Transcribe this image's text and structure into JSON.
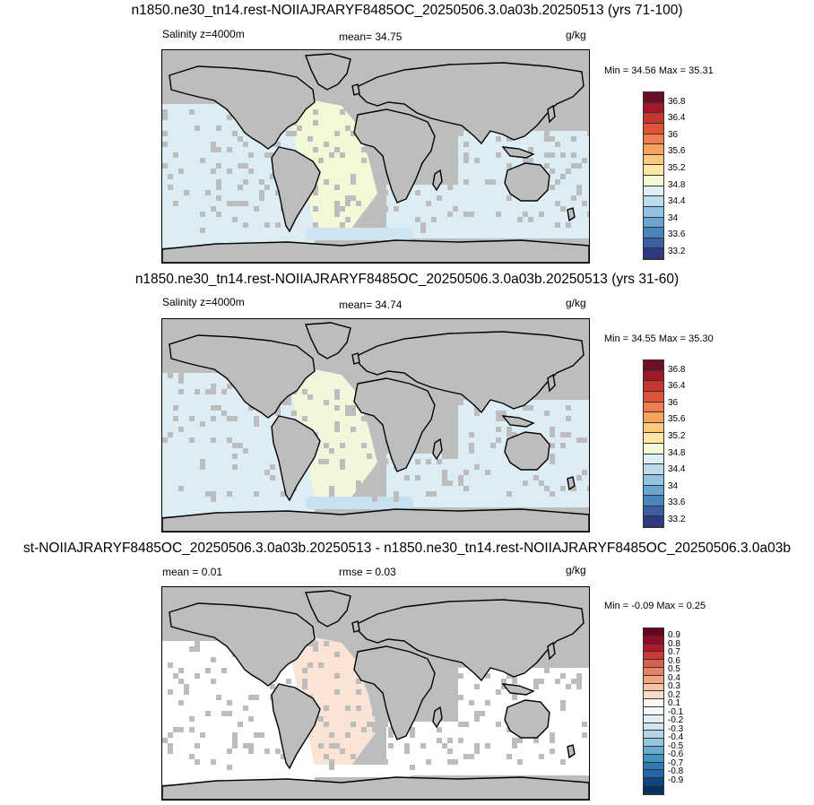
{
  "panels": [
    {
      "title": "n1850.ne30_tn14.rest-NOIIAJRARYF8485OC_20250506.3.0a03b.20250513 (yrs 71-100)",
      "left_label": "Salinity z=4000m",
      "center_label": "mean=  34.75",
      "units": "g/kg",
      "minmax": "Min =  34.56 Max =  35.31",
      "colorbar_labels": [
        "36.8",
        "36.4",
        "36",
        "35.6",
        "35.2",
        "34.8",
        "34.4",
        "34",
        "33.6",
        "33.2"
      ],
      "ocean_color": "#dcedf6",
      "atlantic_color": "#f3f8d6",
      "southern_color": "#cfe6f2"
    },
    {
      "title": "n1850.ne30_tn14.rest-NOIIAJRARYF8485OC_20250506.3.0a03b.20250513 (yrs 31-60)",
      "left_label": "Salinity z=4000m",
      "center_label": "mean=  34.74",
      "units": "g/kg",
      "minmax": "Min =  34.55 Max =  35.30",
      "colorbar_labels": [
        "36.8",
        "36.4",
        "36",
        "35.6",
        "35.2",
        "34.8",
        "34.4",
        "34",
        "33.6",
        "33.2"
      ],
      "ocean_color": "#dcedf6",
      "atlantic_color": "#f0f7da",
      "southern_color": "#c6e1f0"
    },
    {
      "title": "st-NOIIAJRARYF8485OC_20250506.3.0a03b.20250513 - n1850.ne30_tn14.rest-NOIIAJRARYF8485OC_20250506.3.0a03b",
      "left_label": "mean =   0.01",
      "center_label": "rmse =   0.03",
      "units": "g/kg",
      "minmax": "Min =  -0.09 Max =   0.25",
      "colorbar_labels": [
        "0.9",
        "0.8",
        "0.7",
        "0.6",
        "0.5",
        "0.4",
        "0.3",
        "0.2",
        "0.1",
        "-0.1",
        "-0.2",
        "-0.3",
        "-0.4",
        "-0.5",
        "-0.6",
        "-0.7",
        "-0.8",
        "-0.9"
      ],
      "ocean_color": "#ffffff",
      "atlantic_color": "#fbe3d6",
      "southern_color": "#ffffff"
    }
  ],
  "colorbars": {
    "salinity": [
      "#6a0f24",
      "#a3172a",
      "#c8342e",
      "#e0533b",
      "#ef7d4f",
      "#f8a45f",
      "#fcc97c",
      "#fde7a3",
      "#f4f8d4",
      "#ddeef5",
      "#bcdcec",
      "#93c3e0",
      "#6aa5d0",
      "#4a84bd",
      "#3c5fa4",
      "#2e3a84"
    ],
    "difference": [
      "#67001f",
      "#8c0d25",
      "#b2182b",
      "#c83a3a",
      "#d6604d",
      "#e58268",
      "#f4a582",
      "#f8c4a8",
      "#fddbc7",
      "#fff7f3",
      "#f4f8fb",
      "#e1eef6",
      "#d1e5f0",
      "#b4d5e8",
      "#92c5de",
      "#6aaad0",
      "#4393c3",
      "#3278b3",
      "#2166ac",
      "#12437f",
      "#053061"
    ]
  }
}
